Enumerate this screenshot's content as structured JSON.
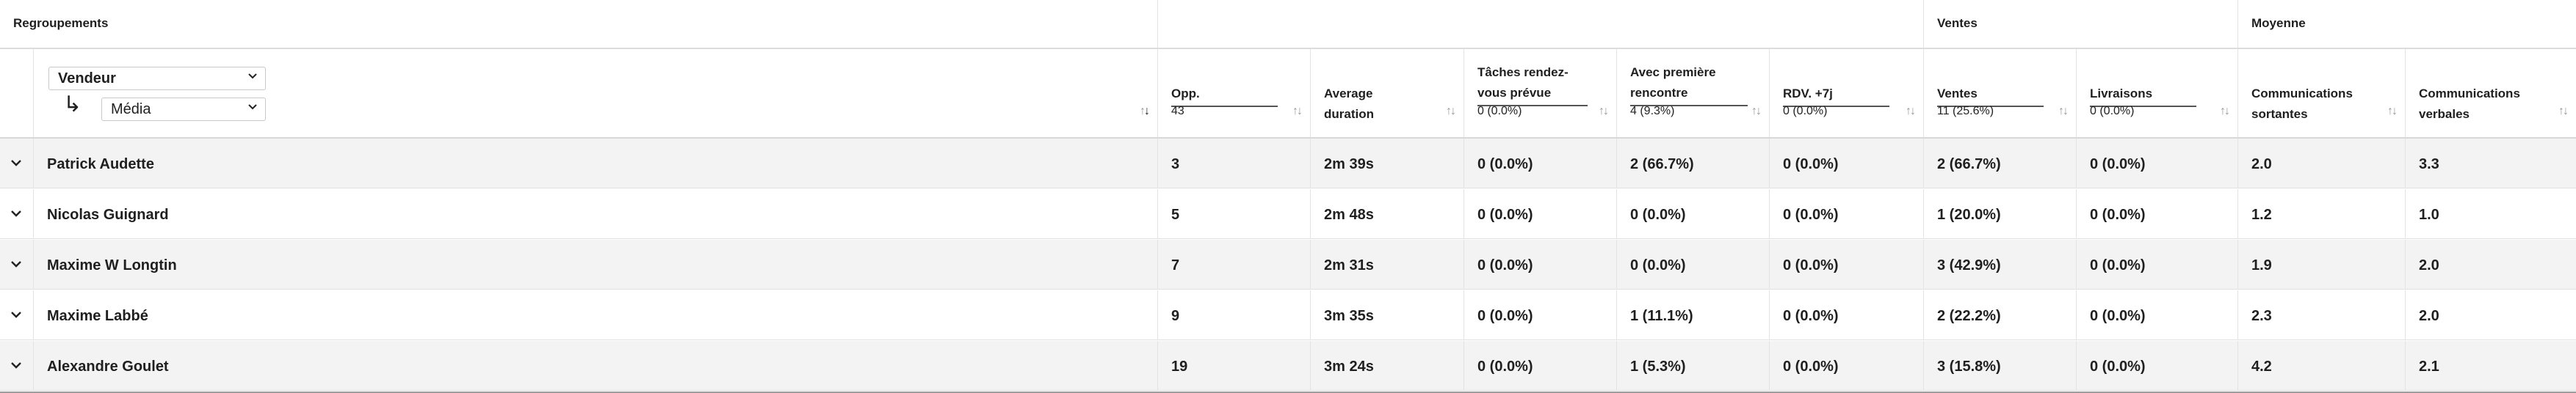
{
  "groups": {
    "regroupements": "Regroupements",
    "blank": "",
    "ventes": "Ventes",
    "moyenne": "Moyenne"
  },
  "grouping": {
    "primary": "Vendeur",
    "secondary": "Média",
    "arrow": "↳"
  },
  "columns": [
    {
      "label": "Opp.",
      "value": "43",
      "underline": true
    },
    {
      "label": "Average duration",
      "value": "",
      "underline": false
    },
    {
      "label": "Tâches rendez-vous prévue",
      "value": "0 (0.0%)",
      "underline": true
    },
    {
      "label": "Avec première rencontre",
      "value": "4 (9.3%)",
      "underline": true
    },
    {
      "label": "RDV. +7j",
      "value": "0 (0.0%)",
      "underline": true
    },
    {
      "label": "Ventes",
      "value": "11 (25.6%)",
      "underline": true
    },
    {
      "label": "Livraisons",
      "value": "0 (0.0%)",
      "underline": true
    },
    {
      "label": "Communications sortantes",
      "value": "",
      "underline": false
    },
    {
      "label": "Communications verbales",
      "value": "",
      "underline": false
    }
  ],
  "rows": [
    {
      "name": "Patrick Audette",
      "cells": [
        "3",
        "2m 39s",
        "0 (0.0%)",
        "2 (66.7%)",
        "0 (0.0%)",
        "2 (66.7%)",
        "0 (0.0%)",
        "2.0",
        "3.3"
      ]
    },
    {
      "name": "Nicolas Guignard",
      "cells": [
        "5",
        "2m 48s",
        "0 (0.0%)",
        "0 (0.0%)",
        "0 (0.0%)",
        "1 (20.0%)",
        "0 (0.0%)",
        "1.2",
        "1.0"
      ]
    },
    {
      "name": "Maxime W Longtin",
      "cells": [
        "7",
        "2m 31s",
        "0 (0.0%)",
        "0 (0.0%)",
        "0 (0.0%)",
        "3 (42.9%)",
        "0 (0.0%)",
        "1.9",
        "2.0"
      ]
    },
    {
      "name": "Maxime Labbé",
      "cells": [
        "9",
        "3m 35s",
        "0 (0.0%)",
        "1 (11.1%)",
        "0 (0.0%)",
        "2 (22.2%)",
        "0 (0.0%)",
        "2.3",
        "2.0"
      ]
    },
    {
      "name": "Alexandre Goulet",
      "cells": [
        "19",
        "3m 24s",
        "0 (0.0%)",
        "1 (5.3%)",
        "0 (0.0%)",
        "3 (15.8%)",
        "0 (0.0%)",
        "4.2",
        "2.1"
      ]
    }
  ],
  "icons": {
    "sort": "sort-arrows-icon",
    "expand": "chevron-down-icon",
    "select": "chevron-down-icon"
  }
}
